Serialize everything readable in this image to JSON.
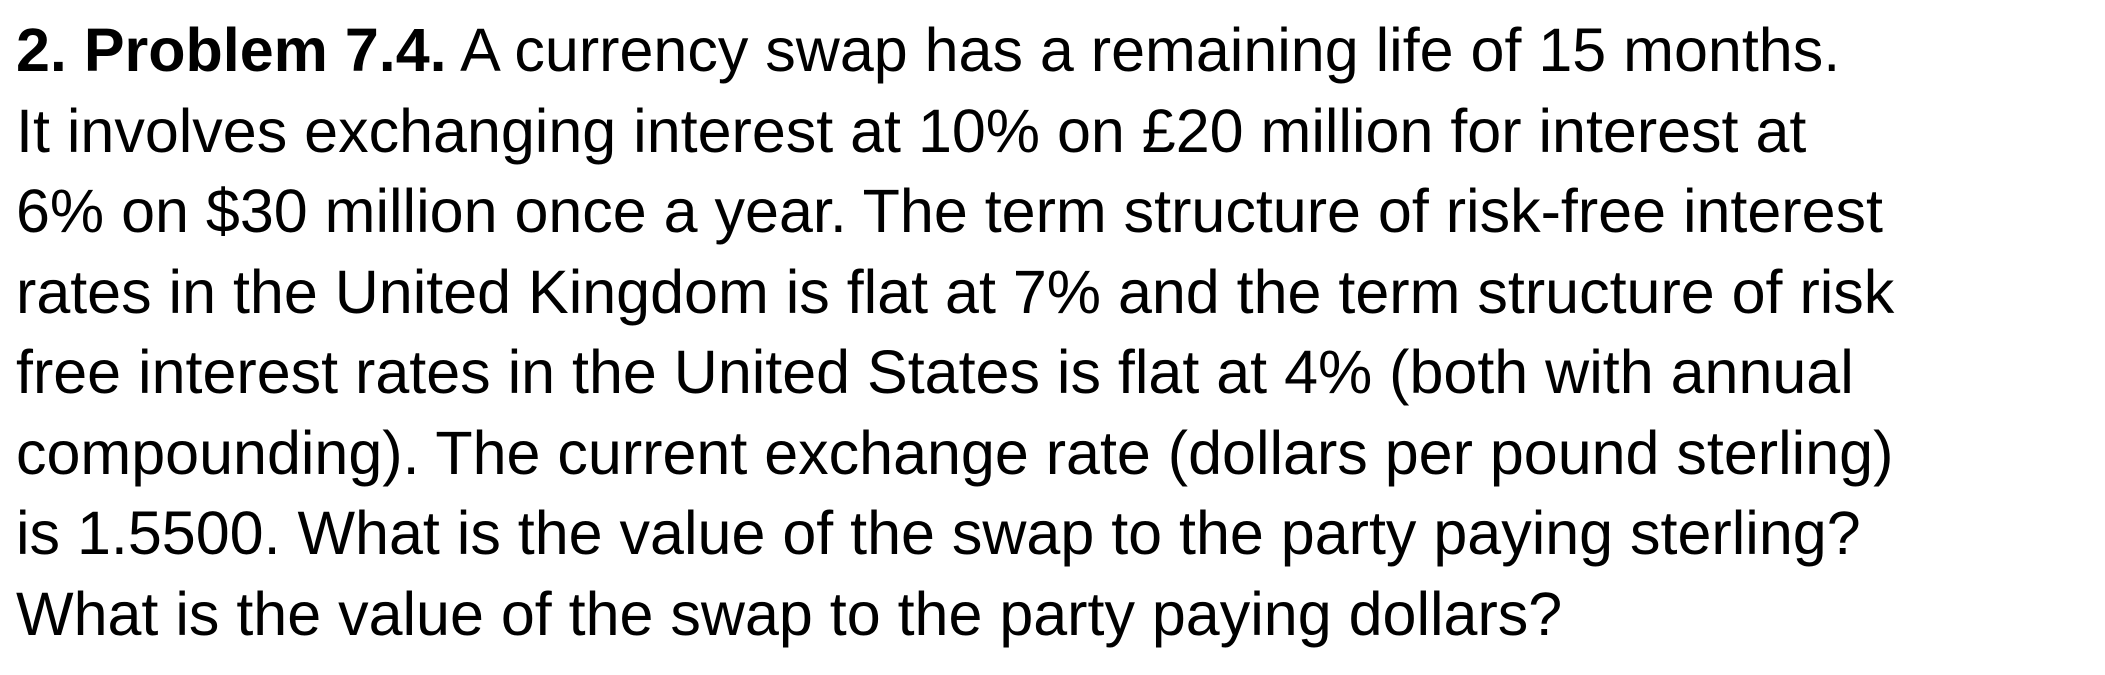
{
  "problem": {
    "heading": "2. Problem 7.4.",
    "lines": [
      " A currency swap has a remaining life of 15 months.",
      "It involves exchanging interest at 10% on £20 million for interest at",
      "6% on $30 million once a year. The term structure of risk-free interest",
      "rates in the United Kingdom is flat at 7% and the term structure of risk",
      "free interest rates in the United States is flat at 4% (both with annual",
      "compounding). The current exchange rate (dollars per pound sterling)",
      "is 1.5500. What is the value of the swap to the party paying sterling?",
      "What is the value of the swap to the party paying dollars?"
    ]
  }
}
